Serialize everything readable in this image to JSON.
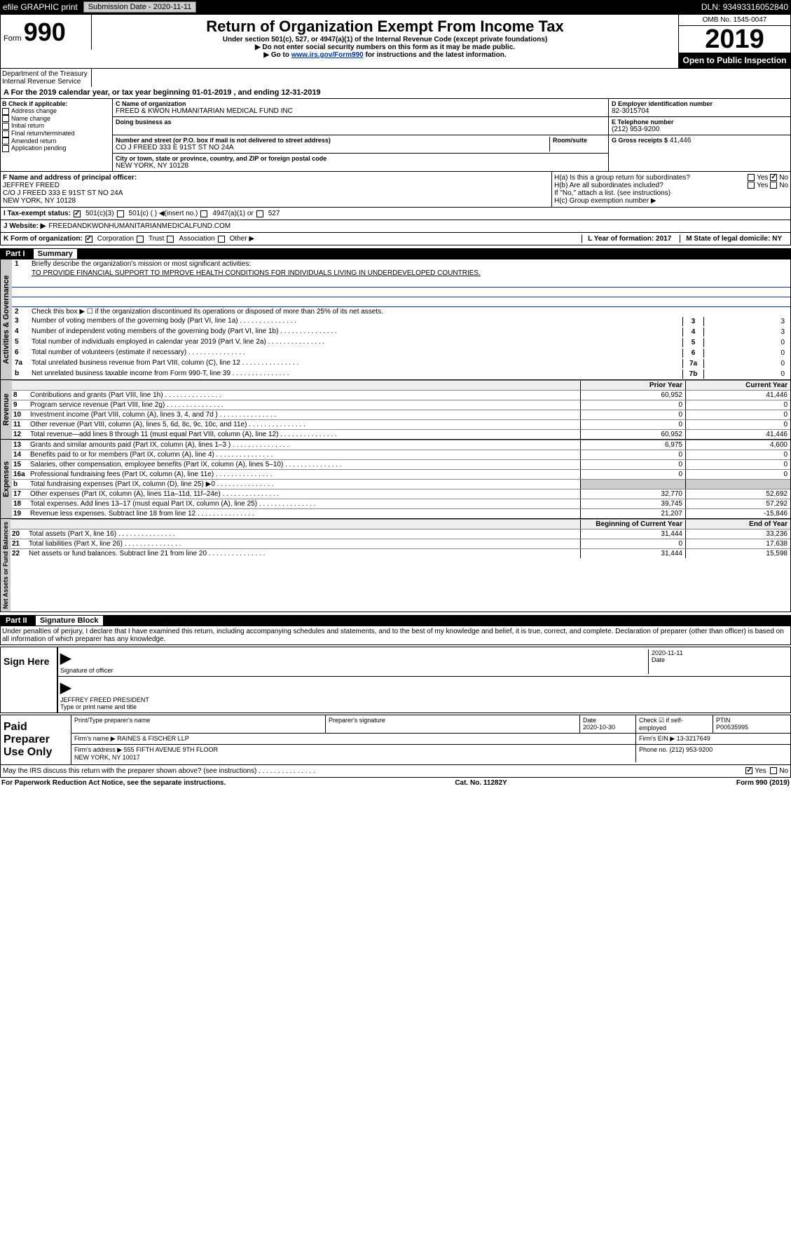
{
  "topbar": {
    "efile": "efile GRAPHIC print",
    "sub_lbl": "Submission Date - 2020-11-11",
    "dln": "DLN: 93493316052840"
  },
  "header": {
    "form_word": "Form",
    "form_num": "990",
    "title": "Return of Organization Exempt From Income Tax",
    "sub1": "Under section 501(c), 527, or 4947(a)(1) of the Internal Revenue Code (except private foundations)",
    "sub2": "▶ Do not enter social security numbers on this form as it may be made public.",
    "sub3": "▶ Go to www.irs.gov/Form990 for instructions and the latest information.",
    "omb": "OMB No. 1545-0047",
    "year": "2019",
    "open": "Open to Public Inspection",
    "dept": "Department of the Treasury\nInternal Revenue Service"
  },
  "period": "A For the 2019 calendar year, or tax year beginning 01-01-2019    , and ending 12-31-2019",
  "sectionB": {
    "lbl": "B Check if applicable:",
    "opts": [
      "Address change",
      "Name change",
      "Initial return",
      "Final return/terminated",
      "Amended return",
      "Application pending"
    ]
  },
  "sectionC": {
    "name_lbl": "C Name of organization",
    "name": "FREED & KWON HUMANITARIAN MEDICAL FUND INC",
    "dba_lbl": "Doing business as",
    "addr_lbl": "Number and street (or P.O. box if mail is not delivered to street address)",
    "room_lbl": "Room/suite",
    "addr": "CO J FREED 333 E 91ST ST NO 24A",
    "city_lbl": "City or town, state or province, country, and ZIP or foreign postal code",
    "city": "NEW YORK, NY  10128"
  },
  "sectionD": {
    "lbl": "D Employer identification number",
    "val": "82-3015704"
  },
  "sectionE": {
    "lbl": "E Telephone number",
    "val": "(212) 953-9200"
  },
  "sectionG": {
    "lbl": "G Gross receipts $",
    "val": "41,446"
  },
  "sectionF": {
    "lbl": "F  Name and address of principal officer:",
    "name": "JEFFREY FREED",
    "addr1": "C/O J FREED 333 E 91ST ST NO 24A",
    "addr2": "NEW YORK, NY  10128"
  },
  "sectionH": {
    "a": "H(a)  Is this a group return for subordinates?",
    "b": "H(b)  Are all subordinates included?",
    "note": "If \"No,\" attach a list. (see instructions)",
    "c": "H(c)  Group exemption number ▶",
    "yes": "Yes",
    "no": "No"
  },
  "sectionI": {
    "lbl": "I   Tax-exempt status:",
    "o1": "501(c)(3)",
    "o2": "501(c) (  ) ◀(insert no.)",
    "o3": "4947(a)(1) or",
    "o4": "527"
  },
  "sectionJ": {
    "lbl": "J   Website: ▶",
    "val": "FREEDANDKWONHUMANITARIANMEDICALFUND.COM"
  },
  "sectionK": {
    "lbl": "K Form of organization:",
    "o1": "Corporation",
    "o2": "Trust",
    "o3": "Association",
    "o4": "Other ▶"
  },
  "sectionL": {
    "lbl": "L Year of formation: 2017"
  },
  "sectionM": {
    "lbl": "M State of legal domicile: NY"
  },
  "part1": {
    "title": "Part I",
    "sub": "Summary",
    "l1": "Briefly describe the organization's mission or most significant activities:",
    "mission": "TO PROVIDE FINANCIAL SUPPORT TO IMPROVE HEALTH CONDITIONS FOR INDIVIDUALS LIVING IN UNDERDEVELOPED COUNTRIES.",
    "l2": "Check this box ▶ ☐ if the organization discontinued its operations or disposed of more than 25% of its net assets.",
    "tab1": "Activities & Governance",
    "tab2": "Revenue",
    "tab3": "Expenses",
    "tab4": "Net Assets or Fund Balances",
    "h_prior": "Prior Year",
    "h_current": "Current Year",
    "h_begin": "Beginning of Current Year",
    "h_end": "End of Year",
    "lines_single": [
      {
        "n": "3",
        "t": "Number of voting members of the governing body (Part VI, line 1a)",
        "b": "3",
        "v": "3"
      },
      {
        "n": "4",
        "t": "Number of independent voting members of the governing body (Part VI, line 1b)",
        "b": "4",
        "v": "3"
      },
      {
        "n": "5",
        "t": "Total number of individuals employed in calendar year 2019 (Part V, line 2a)",
        "b": "5",
        "v": "0"
      },
      {
        "n": "6",
        "t": "Total number of volunteers (estimate if necessary)",
        "b": "6",
        "v": "0"
      },
      {
        "n": "7a",
        "t": "Total unrelated business revenue from Part VIII, column (C), line 12",
        "b": "7a",
        "v": "0"
      },
      {
        "n": "b",
        "t": "Net unrelated business taxable income from Form 990-T, line 39",
        "b": "7b",
        "v": "0"
      }
    ],
    "lines_rev": [
      {
        "n": "8",
        "t": "Contributions and grants (Part VIII, line 1h)",
        "v1": "60,952",
        "v2": "41,446"
      },
      {
        "n": "9",
        "t": "Program service revenue (Part VIII, line 2g)",
        "v1": "0",
        "v2": "0"
      },
      {
        "n": "10",
        "t": "Investment income (Part VIII, column (A), lines 3, 4, and 7d )",
        "v1": "0",
        "v2": "0"
      },
      {
        "n": "11",
        "t": "Other revenue (Part VIII, column (A), lines 5, 6d, 8c, 9c, 10c, and 11e)",
        "v1": "0",
        "v2": "0"
      },
      {
        "n": "12",
        "t": "Total revenue—add lines 8 through 11 (must equal Part VIII, column (A), line 12)",
        "v1": "60,952",
        "v2": "41,446"
      }
    ],
    "lines_exp": [
      {
        "n": "13",
        "t": "Grants and similar amounts paid (Part IX, column (A), lines 1–3 )",
        "v1": "6,975",
        "v2": "4,600"
      },
      {
        "n": "14",
        "t": "Benefits paid to or for members (Part IX, column (A), line 4)",
        "v1": "0",
        "v2": "0"
      },
      {
        "n": "15",
        "t": "Salaries, other compensation, employee benefits (Part IX, column (A), lines 5–10)",
        "v1": "0",
        "v2": "0"
      },
      {
        "n": "16a",
        "t": "Professional fundraising fees (Part IX, column (A), line 11e)",
        "v1": "0",
        "v2": "0"
      },
      {
        "n": "b",
        "t": "Total fundraising expenses (Part IX, column (D), line 25) ▶0",
        "v1": "",
        "v2": ""
      },
      {
        "n": "17",
        "t": "Other expenses (Part IX, column (A), lines 11a–11d, 11f–24e)",
        "v1": "32,770",
        "v2": "52,692"
      },
      {
        "n": "18",
        "t": "Total expenses. Add lines 13–17 (must equal Part IX, column (A), line 25)",
        "v1": "39,745",
        "v2": "57,292"
      },
      {
        "n": "19",
        "t": "Revenue less expenses. Subtract line 18 from line 12",
        "v1": "21,207",
        "v2": "-15,846"
      }
    ],
    "lines_net": [
      {
        "n": "20",
        "t": "Total assets (Part X, line 16)",
        "v1": "31,444",
        "v2": "33,236"
      },
      {
        "n": "21",
        "t": "Total liabilities (Part X, line 26)",
        "v1": "0",
        "v2": "17,638"
      },
      {
        "n": "22",
        "t": "Net assets or fund balances. Subtract line 21 from line 20",
        "v1": "31,444",
        "v2": "15,598"
      }
    ]
  },
  "part2": {
    "title": "Part II",
    "sub": "Signature Block",
    "decl": "Under penalties of perjury, I declare that I have examined this return, including accompanying schedules and statements, and to the best of my knowledge and belief, it is true, correct, and complete. Declaration of preparer (other than officer) is based on all information of which preparer has any knowledge.",
    "sign_here": "Sign Here",
    "sig_off": "Signature of officer",
    "date": "Date",
    "date_v": "2020-11-11",
    "officer": "JEFFREY FREED  PRESIDENT",
    "type_name": "Type or print name and title",
    "paid": "Paid Preparer Use Only",
    "prep_name_lbl": "Print/Type preparer's name",
    "prep_sig_lbl": "Preparer's signature",
    "prep_date": "2020-10-30",
    "check_self": "Check ☑ if self-employed",
    "ptin_lbl": "PTIN",
    "ptin": "P00535995",
    "firm_name_lbl": "Firm's name    ▶",
    "firm_name": "RAINES & FISCHER LLP",
    "firm_ein_lbl": "Firm's EIN ▶",
    "firm_ein": "13-3217649",
    "firm_addr_lbl": "Firm's address ▶",
    "firm_addr": "555 FIFTH AVENUE 9TH FLOOR\nNEW YORK, NY  10017",
    "phone_lbl": "Phone no.",
    "phone": "(212) 953-9200",
    "discuss": "May the IRS discuss this return with the preparer shown above? (see instructions)",
    "yes": "Yes",
    "no": "No"
  },
  "footer": {
    "l": "For Paperwork Reduction Act Notice, see the separate instructions.",
    "c": "Cat. No. 11282Y",
    "r": "Form 990 (2019)"
  }
}
